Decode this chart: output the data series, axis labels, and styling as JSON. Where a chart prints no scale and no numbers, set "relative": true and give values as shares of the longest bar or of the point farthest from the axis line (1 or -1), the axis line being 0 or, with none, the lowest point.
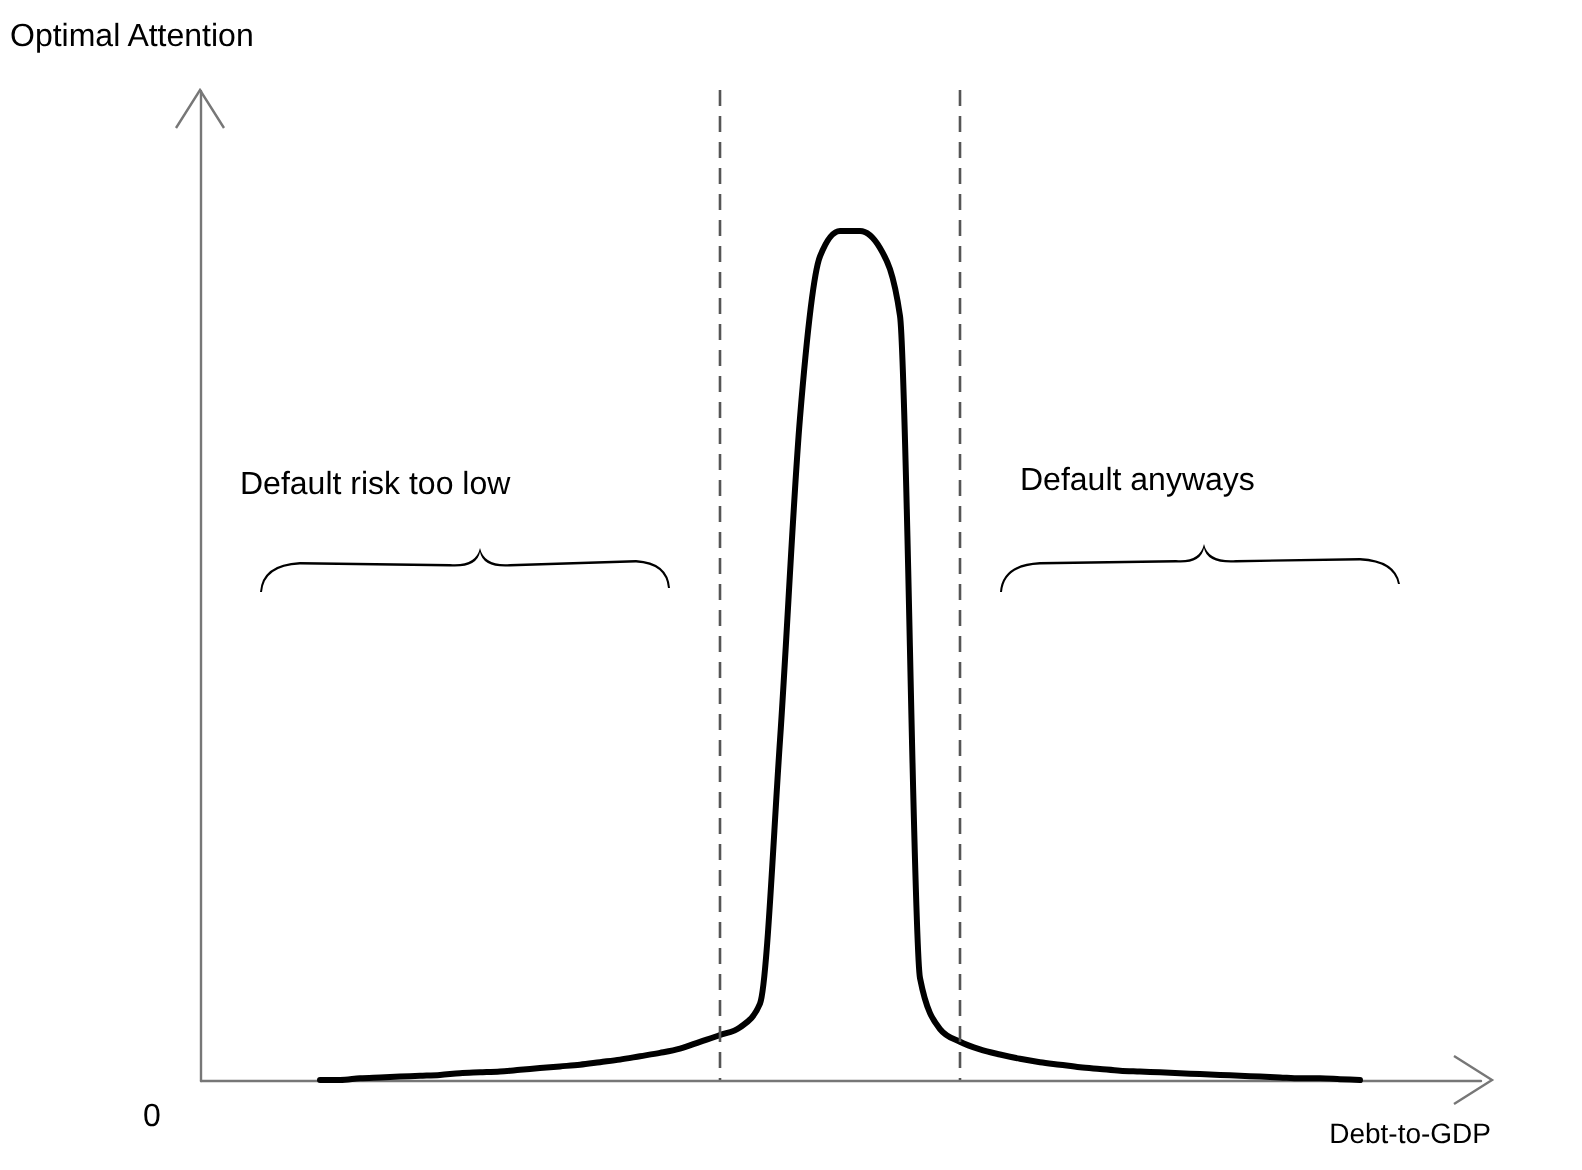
{
  "chart_data": {
    "type": "line",
    "relative": true,
    "xlabel": "Debt-to-GDP",
    "categories": [
      null,
      null,
      null,
      null,
      null,
      null,
      null,
      null,
      null,
      null,
      null,
      null,
      null,
      null,
      null,
      null,
      null,
      null,
      null,
      null,
      null,
      null,
      null,
      null,
      null,
      null,
      null,
      null,
      null,
      null,
      null,
      null,
      null,
      null,
      null,
      null,
      null,
      null,
      null,
      null,
      null,
      null,
      null,
      null,
      null,
      null,
      null,
      null,
      null,
      null,
      null,
      null,
      null,
      null,
      null,
      null,
      null,
      null,
      null,
      null,
      null,
      null,
      null,
      null,
      null
    ],
    "series": [
      {
        "color": "#000000",
        "values": [
          null,
          null,
          null,
          null,
          null,
          null,
          0,
          0,
          0.002,
          0.003,
          0.004,
          0.005,
          0.006,
          0.008,
          0.009,
          0.01,
          0.012,
          0.014,
          0.016,
          0.018,
          0.021,
          0.024,
          0.028,
          0.032,
          0.037,
          0.045,
          0.053,
          0.062,
          0.09,
          0.4,
          0.78,
          0.97,
          1,
          1,
          0.98,
          0.9,
          0.12,
          0.06,
          0.045,
          0.036,
          0.03,
          0.025,
          0.021,
          0.018,
          0.015,
          0.013,
          0.011,
          0.01,
          0.009,
          0.008,
          0.007,
          0.006,
          0.005,
          0.004,
          0.003,
          0.002,
          0.002,
          0.001,
          0,
          null,
          null,
          null,
          null,
          null,
          null
        ]
      }
    ],
    "annotations": [
      "0",
      "Default risk too low",
      "Default anyways",
      "Optimal Attention"
    ],
    "marker": "none",
    "line_style": "solid",
    "grid": false
  }
}
